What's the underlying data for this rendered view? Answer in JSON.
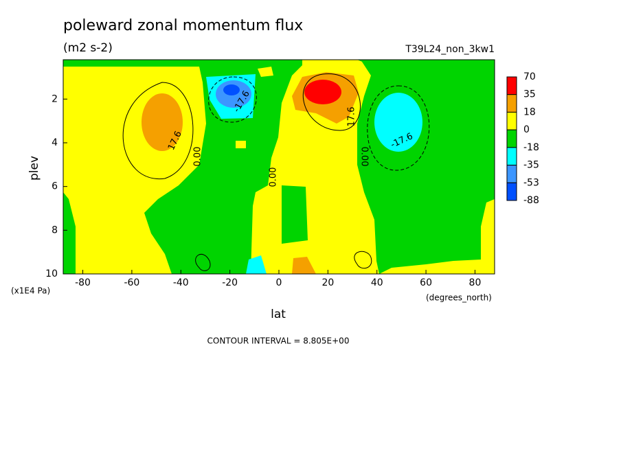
{
  "chart_data": {
    "type": "contour",
    "title": "poleward zonal momentum flux",
    "subtitle": "(m2 s-2)",
    "run_label": "T39L24_non_3kw1",
    "x_label": "lat",
    "x_unit": "(degrees_north)",
    "y_label": "plev",
    "y_unit": "(x1E4 Pa)",
    "footer": "CONTOUR INTERVAL = 8.805E+00",
    "xlim": [
      -88,
      88
    ],
    "xticks": [
      -80,
      -60,
      -40,
      -20,
      0,
      20,
      40,
      60,
      80
    ],
    "ylim": [
      10,
      0.2
    ],
    "yticks": [
      2,
      4,
      6,
      8,
      10
    ],
    "levels": [
      70,
      35,
      18,
      0,
      -18,
      -35,
      -53,
      -88
    ],
    "colors": [
      "#ff0000",
      "#f5a000",
      "#ffff00",
      "#00d400",
      "#00ffff",
      "#3c96ff",
      "#0050ff"
    ],
    "contour_labels": [
      "-17.6",
      "17.6",
      "0.00",
      "0.00",
      "17.6",
      "0.00",
      "-17.6"
    ]
  }
}
